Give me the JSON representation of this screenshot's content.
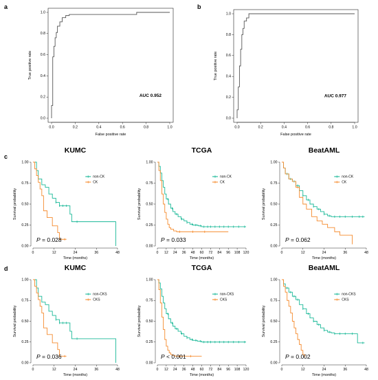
{
  "figure": {
    "panel_labels": [
      "a",
      "b",
      "c",
      "d"
    ]
  },
  "chart_data": [
    {
      "id": "roc_a",
      "type": "line",
      "panel": "a",
      "xlabel": "False positive rate",
      "ylabel": "True positive rate",
      "xlim": [
        0,
        1
      ],
      "ylim": [
        0,
        1
      ],
      "xticks": [
        "0.0",
        "0.2",
        "0.4",
        "0.6",
        "0.8",
        "1.0"
      ],
      "yticks": [
        "0.0",
        "0.2",
        "0.4",
        "0.6",
        "0.8",
        "1.0"
      ],
      "annotation": "AUC 0.952",
      "color": "#555555",
      "series": [
        {
          "x": [
            0,
            0,
            0.01,
            0.01,
            0.02,
            0.02,
            0.03,
            0.03,
            0.04,
            0.04,
            0.05,
            0.05,
            0.07,
            0.07,
            0.09,
            0.09,
            0.12,
            0.12,
            0.15,
            0.15,
            0.72,
            0.72,
            1.0
          ],
          "y": [
            0,
            0.12,
            0.12,
            0.58,
            0.58,
            0.68,
            0.68,
            0.76,
            0.76,
            0.81,
            0.81,
            0.87,
            0.87,
            0.91,
            0.91,
            0.95,
            0.95,
            0.97,
            0.97,
            0.98,
            0.98,
            1.0,
            1.0
          ]
        }
      ]
    },
    {
      "id": "roc_b",
      "type": "line",
      "panel": "b",
      "xlabel": "False positive rate",
      "ylabel": "True positive rate",
      "xlim": [
        0,
        1
      ],
      "ylim": [
        0,
        1
      ],
      "xticks": [
        "0.0",
        "0.2",
        "0.4",
        "0.6",
        "0.8",
        "1.0"
      ],
      "yticks": [
        "0.0",
        "0.2",
        "0.4",
        "0.6",
        "0.8",
        "1.0"
      ],
      "annotation": "AUC 0.977",
      "color": "#555555",
      "series": [
        {
          "x": [
            0,
            0,
            0.01,
            0.01,
            0.02,
            0.02,
            0.03,
            0.03,
            0.04,
            0.04,
            0.05,
            0.05,
            0.06,
            0.06,
            0.08,
            0.08,
            0.1,
            0.1,
            1.0
          ],
          "y": [
            0,
            0.08,
            0.08,
            0.3,
            0.3,
            0.5,
            0.5,
            0.66,
            0.66,
            0.8,
            0.8,
            0.86,
            0.86,
            0.93,
            0.93,
            0.96,
            0.96,
            1.0,
            1.0
          ]
        }
      ]
    },
    {
      "id": "km_c_kumc",
      "type": "line",
      "panel": "c",
      "title": "KUMC",
      "xlabel": "Time (months)",
      "ylabel": "Survival probability",
      "xlim": [
        0,
        48
      ],
      "ylim": [
        0,
        1
      ],
      "xticks": [
        "0",
        "12",
        "24",
        "36",
        "48"
      ],
      "xtick_values": [
        0,
        12,
        24,
        36,
        48
      ],
      "yticks": [
        "0.00",
        "0.25",
        "0.50",
        "0.75",
        "1.00"
      ],
      "pvalue": "= 0.028",
      "series": [
        {
          "name": "non-CK",
          "color": "#18b897",
          "x": [
            0,
            2,
            2,
            3,
            3,
            5,
            5,
            7,
            7,
            9,
            9,
            11,
            11,
            13,
            13,
            15,
            15,
            21,
            21,
            22,
            22,
            47,
            47
          ],
          "y": [
            1.0,
            1.0,
            0.9,
            0.9,
            0.8,
            0.8,
            0.73,
            0.73,
            0.7,
            0.7,
            0.62,
            0.62,
            0.57,
            0.57,
            0.52,
            0.52,
            0.48,
            0.48,
            0.38,
            0.38,
            0.29,
            0.29,
            0.0
          ],
          "censor_x": [
            13,
            15,
            17,
            19,
            25
          ]
        },
        {
          "name": "CK",
          "color": "#f58a2c",
          "x": [
            0,
            1,
            1,
            2,
            2,
            3,
            3,
            4,
            4,
            5,
            5,
            6,
            6,
            8,
            8,
            11,
            11,
            14,
            14,
            15,
            15,
            19
          ],
          "y": [
            1.0,
            1.0,
            0.92,
            0.92,
            0.84,
            0.84,
            0.76,
            0.76,
            0.68,
            0.68,
            0.6,
            0.6,
            0.42,
            0.42,
            0.34,
            0.34,
            0.24,
            0.24,
            0.16,
            0.16,
            0.08,
            0.08
          ],
          "censor_x": [
            18
          ]
        }
      ]
    },
    {
      "id": "km_c_tcga",
      "type": "line",
      "panel": "c",
      "title": "TCGA",
      "xlabel": "Time (months)",
      "ylabel": "Survival probability",
      "xlim": [
        0,
        120
      ],
      "ylim": [
        0,
        1
      ],
      "xticks": [
        "0",
        "12",
        "24",
        "36",
        "48",
        "60",
        "72",
        "84",
        "96",
        "108",
        "120"
      ],
      "xtick_values": [
        0,
        12,
        24,
        36,
        48,
        60,
        72,
        84,
        96,
        108,
        120
      ],
      "yticks": [
        "0.00",
        "0.25",
        "0.50",
        "0.75",
        "1.00"
      ],
      "pvalue": "= 0.033",
      "series": [
        {
          "name": "non-CK",
          "color": "#18b897",
          "x": [
            0,
            2,
            4,
            6,
            8,
            10,
            12,
            15,
            18,
            21,
            24,
            28,
            32,
            36,
            40,
            44,
            48,
            55,
            60,
            120
          ],
          "y": [
            1.0,
            0.95,
            0.87,
            0.78,
            0.7,
            0.62,
            0.56,
            0.5,
            0.45,
            0.41,
            0.38,
            0.35,
            0.32,
            0.3,
            0.28,
            0.26,
            0.25,
            0.24,
            0.23,
            0.23
          ],
          "censor_x": [
            14,
            20,
            26,
            33,
            40,
            47,
            52,
            58,
            63,
            68,
            72,
            78,
            84,
            90,
            96,
            103,
            110,
            118
          ]
        },
        {
          "name": "CK",
          "color": "#f58a2c",
          "x": [
            0,
            2,
            4,
            6,
            8,
            10,
            12,
            14,
            16,
            18,
            22,
            26,
            96
          ],
          "y": [
            1.0,
            0.9,
            0.78,
            0.62,
            0.5,
            0.4,
            0.32,
            0.26,
            0.22,
            0.2,
            0.18,
            0.17,
            0.17
          ],
          "censor_x": [
            30,
            48,
            64
          ]
        }
      ]
    },
    {
      "id": "km_c_beataml",
      "type": "line",
      "panel": "c",
      "title": "BeatAML",
      "xlabel": "Time (months)",
      "ylabel": "Survival probability",
      "xlim": [
        0,
        48
      ],
      "ylim": [
        0,
        1
      ],
      "xticks": [
        "0",
        "12",
        "24",
        "36",
        "48"
      ],
      "xtick_values": [
        0,
        12,
        24,
        36,
        48
      ],
      "yticks": [
        "0.00",
        "0.25",
        "0.50",
        "0.75",
        "1.00"
      ],
      "pvalue": "= 0.062",
      "series": [
        {
          "name": "non-CK",
          "color": "#18b897",
          "x": [
            0,
            1,
            2,
            4,
            6,
            8,
            10,
            12,
            14,
            16,
            18,
            20,
            22,
            24,
            26,
            28,
            47
          ],
          "y": [
            1.0,
            0.93,
            0.86,
            0.8,
            0.77,
            0.72,
            0.66,
            0.6,
            0.55,
            0.5,
            0.47,
            0.44,
            0.41,
            0.38,
            0.36,
            0.35,
            0.35
          ],
          "censor_x": [
            3,
            5,
            7,
            9,
            12,
            15,
            18,
            21,
            24,
            27,
            30,
            33,
            36,
            40,
            44,
            46
          ]
        },
        {
          "name": "CK",
          "color": "#f58a2c",
          "x": [
            0,
            1,
            2,
            4,
            6,
            8,
            10,
            12,
            14,
            17,
            20,
            23,
            26,
            30,
            33,
            40,
            40
          ],
          "y": [
            1.0,
            0.93,
            0.86,
            0.8,
            0.77,
            0.7,
            0.58,
            0.5,
            0.44,
            0.35,
            0.3,
            0.26,
            0.22,
            0.17,
            0.13,
            0.13,
            0.02
          ],
          "censor_x": [
            9
          ]
        }
      ]
    },
    {
      "id": "km_d_kumc",
      "type": "line",
      "panel": "d",
      "title": "KUMC",
      "xlabel": "Time (months)",
      "ylabel": "Survival probability",
      "xlim": [
        0,
        48
      ],
      "ylim": [
        0,
        1
      ],
      "xticks": [
        "0",
        "12",
        "24",
        "36",
        "48"
      ],
      "xtick_values": [
        0,
        12,
        24,
        36,
        48
      ],
      "yticks": [
        "0.00",
        "0.25",
        "0.50",
        "0.75",
        "1.00"
      ],
      "pvalue": "= 0.036",
      "series": [
        {
          "name": "non-CKS",
          "color": "#18b897",
          "x": [
            0,
            2,
            2,
            3,
            3,
            5,
            5,
            7,
            7,
            9,
            9,
            11,
            11,
            13,
            13,
            15,
            15,
            21,
            21,
            22,
            22,
            47,
            47
          ],
          "y": [
            1.0,
            1.0,
            0.9,
            0.9,
            0.8,
            0.8,
            0.73,
            0.73,
            0.7,
            0.7,
            0.62,
            0.62,
            0.57,
            0.57,
            0.52,
            0.52,
            0.48,
            0.48,
            0.38,
            0.38,
            0.29,
            0.29,
            0.0
          ],
          "censor_x": [
            13,
            15,
            17,
            19,
            25
          ]
        },
        {
          "name": "CKS",
          "color": "#f58a2c",
          "x": [
            0,
            1,
            1,
            2,
            2,
            3,
            3,
            4,
            4,
            5,
            5,
            6,
            6,
            8,
            8,
            11,
            11,
            14,
            14,
            15,
            15,
            19
          ],
          "y": [
            1.0,
            1.0,
            0.92,
            0.92,
            0.84,
            0.84,
            0.76,
            0.76,
            0.68,
            0.68,
            0.6,
            0.6,
            0.42,
            0.42,
            0.34,
            0.34,
            0.24,
            0.24,
            0.16,
            0.16,
            0.08,
            0.08
          ],
          "censor_x": [
            18
          ]
        }
      ]
    },
    {
      "id": "km_d_tcga",
      "type": "line",
      "panel": "d",
      "title": "TCGA",
      "xlabel": "Time (months)",
      "ylabel": "Survival probability",
      "xlim": [
        0,
        120
      ],
      "ylim": [
        0,
        1
      ],
      "xticks": [
        "0",
        "12",
        "24",
        "36",
        "48",
        "60",
        "72",
        "84",
        "96",
        "108",
        "120"
      ],
      "xtick_values": [
        0,
        12,
        24,
        36,
        48,
        60,
        72,
        84,
        96,
        108,
        120
      ],
      "yticks": [
        "0.00",
        "0.25",
        "0.50",
        "0.75",
        "1.00"
      ],
      "pvalue": "< 0.001",
      "series": [
        {
          "name": "non-CKS",
          "color": "#18b897",
          "x": [
            0,
            2,
            4,
            6,
            8,
            10,
            12,
            15,
            18,
            21,
            24,
            28,
            32,
            36,
            40,
            44,
            48,
            54,
            60,
            120
          ],
          "y": [
            1.0,
            0.96,
            0.89,
            0.8,
            0.72,
            0.65,
            0.59,
            0.53,
            0.48,
            0.44,
            0.41,
            0.38,
            0.35,
            0.32,
            0.3,
            0.28,
            0.27,
            0.26,
            0.25,
            0.25
          ],
          "censor_x": [
            14,
            20,
            26,
            33,
            40,
            47,
            52,
            58,
            63,
            68,
            72,
            78,
            84,
            90,
            96,
            103,
            110,
            118
          ]
        },
        {
          "name": "CKS",
          "color": "#f58a2c",
          "x": [
            0,
            2,
            4,
            6,
            8,
            10,
            12,
            14,
            16,
            18,
            20,
            24,
            60
          ],
          "y": [
            1.0,
            0.88,
            0.72,
            0.55,
            0.4,
            0.28,
            0.2,
            0.15,
            0.12,
            0.1,
            0.09,
            0.08,
            0.08
          ],
          "censor_x": [
            30,
            45
          ]
        }
      ]
    },
    {
      "id": "km_d_beataml",
      "type": "line",
      "panel": "d",
      "title": "BeatAML",
      "xlabel": "Time (months)",
      "ylabel": "Survival probability",
      "xlim": [
        0,
        48
      ],
      "ylim": [
        0,
        1
      ],
      "xticks": [
        "0",
        "12",
        "24",
        "36",
        "48"
      ],
      "xtick_values": [
        0,
        12,
        24,
        36,
        48
      ],
      "yticks": [
        "0.00",
        "0.25",
        "0.50",
        "0.75",
        "1.00"
      ],
      "pvalue": "= 0.002",
      "series": [
        {
          "name": "non-CKS",
          "color": "#18b897",
          "x": [
            0,
            1,
            2,
            4,
            6,
            8,
            10,
            12,
            14,
            16,
            18,
            20,
            22,
            24,
            26,
            28,
            30,
            43,
            43,
            47
          ],
          "y": [
            1.0,
            0.95,
            0.9,
            0.85,
            0.8,
            0.76,
            0.7,
            0.65,
            0.59,
            0.54,
            0.5,
            0.46,
            0.42,
            0.39,
            0.37,
            0.36,
            0.35,
            0.35,
            0.24,
            0.24
          ],
          "censor_x": [
            3,
            5,
            7,
            9,
            12,
            15,
            18,
            21,
            24,
            27,
            30,
            33,
            36,
            40,
            46
          ]
        },
        {
          "name": "CKS",
          "color": "#f58a2c",
          "x": [
            0,
            1,
            2,
            3,
            4,
            5,
            6,
            7,
            8,
            9,
            10,
            11,
            12,
            13
          ],
          "y": [
            1.0,
            0.92,
            0.85,
            0.75,
            0.68,
            0.6,
            0.5,
            0.42,
            0.35,
            0.28,
            0.22,
            0.15,
            0.1,
            0.08
          ],
          "censor_x": [
            13
          ]
        }
      ]
    }
  ]
}
